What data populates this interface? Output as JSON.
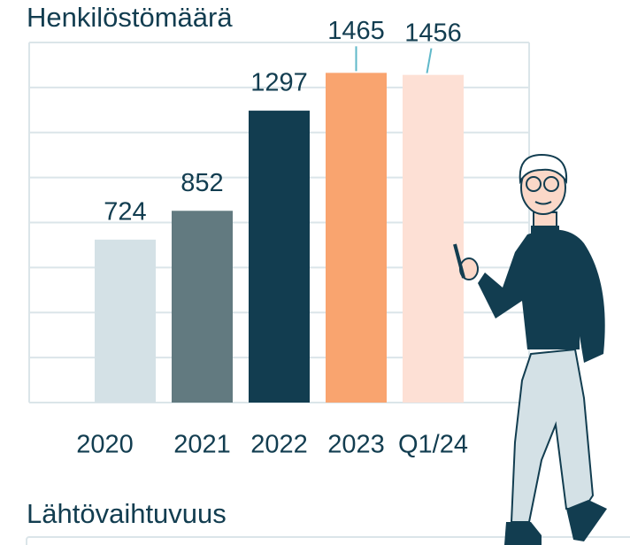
{
  "chart_data": {
    "type": "bar",
    "title": "Henkilöstömäärä",
    "categories": [
      "2020",
      "2021",
      "2022",
      "2023",
      "Q1/24"
    ],
    "values": [
      724,
      852,
      1297,
      1465,
      1456
    ],
    "colors": [
      "#d4e1e6",
      "#627a80",
      "#123d50",
      "#f9a46f",
      "#fde0d5"
    ],
    "ylim": [
      0,
      1600
    ],
    "yticks": [
      0,
      200,
      400,
      600,
      800,
      1000,
      1200,
      1400,
      1600
    ],
    "grid": true
  },
  "next_section": {
    "title": "Lähtövaihtuvuus"
  }
}
